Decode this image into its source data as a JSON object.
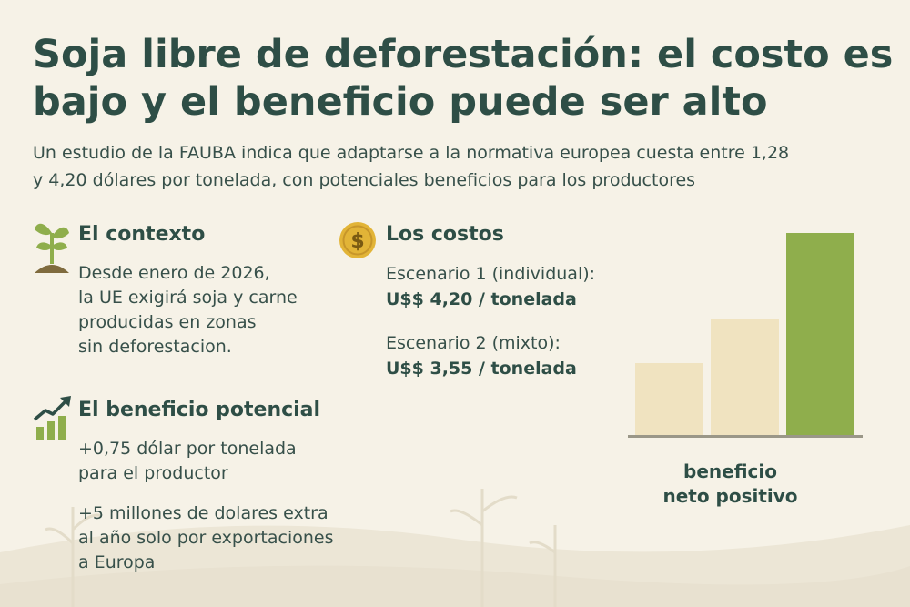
{
  "title_lines": [
    "Soja libre de deforestación: el costo es",
    "bajo y el beneficio puede ser alto"
  ],
  "subtitle_lines": [
    "Un estudio de la FAUBA indica que adaptarse a la normativa europea cuesta entre 1,28",
    "y 4,20 dólares por tonelada, con potenciales beneficios para los productores"
  ],
  "context": {
    "icon": "sprout-icon",
    "heading": "El contexto",
    "lines": [
      "Desde enero de 2026,",
      "la UE exigirá soja y carne",
      "producidas en zonas",
      "sin deforestacion."
    ]
  },
  "costs": {
    "icon": "dollar-coin-icon",
    "heading": "Los costos",
    "scenario1_label": "Escenario 1 (individual):",
    "scenario1_value": "U$$ 4,20 / tonelada",
    "scenario2_label": "Escenario 2 (mixto):",
    "scenario2_value": "U$$ 3,55 / tonelada"
  },
  "benefit": {
    "icon": "growth-chart-icon",
    "heading": "El beneficio potencial",
    "item1_lines": [
      "+0,75 dólar por tonelada",
      "para el productor"
    ],
    "item2_lines": [
      "+5 millones de dolares extra",
      "al año solo por exportaciones",
      "a Europa"
    ]
  },
  "colors": {
    "title": "#2e4e46",
    "accent_green": "#8fae4c",
    "light_bar": "#f0e3c0",
    "coin": "#e2b437",
    "background": "#f6f2e7"
  },
  "chart_data": {
    "type": "bar",
    "categories": [
      "",
      "",
      ""
    ],
    "values": [
      1,
      1.6,
      2.8
    ],
    "ylim": [
      0,
      2.8
    ],
    "caption_lines": [
      "beneficio",
      "neto positivo"
    ]
  }
}
